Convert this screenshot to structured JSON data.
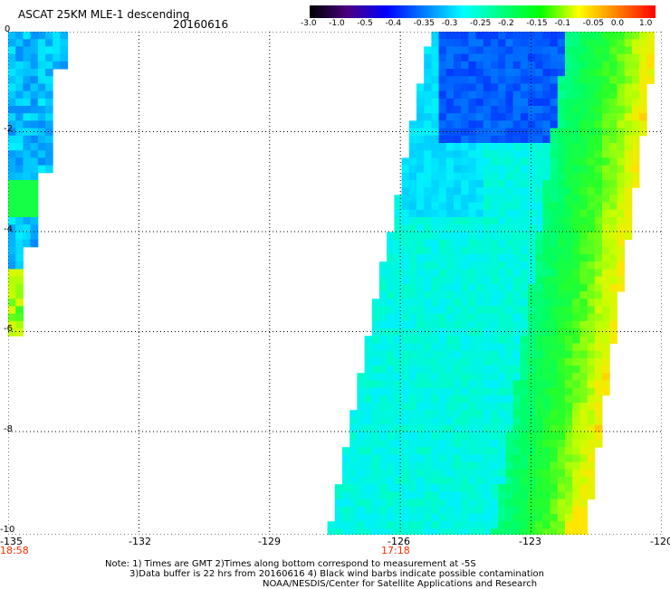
{
  "header": {
    "title": "ASCAT 25KM MLE-1 descending",
    "date": "20160616"
  },
  "colorbar": {
    "labels": [
      "-3.0",
      "-1.0",
      "-0.5",
      "-0.4",
      "-0.35",
      "-0.3",
      "-0.25",
      "-0.2",
      "-0.15",
      "-0.1",
      "-0.05",
      "0.0",
      "1.0"
    ],
    "colors": [
      "#000000",
      "#4b0082",
      "#0000ff",
      "#0080ff",
      "#00ffff",
      "#00ff80",
      "#00ff00",
      "#ffff00",
      "#ff8000",
      "#ff0000"
    ]
  },
  "map": {
    "lon_range": [
      -135,
      -120
    ],
    "lat_range": [
      -10,
      0
    ],
    "x_ticks": [
      "-135",
      "-132",
      "-129",
      "-126",
      "-123",
      "-120"
    ],
    "y_ticks": [
      "0",
      "-2",
      "-4",
      "-6",
      "-8",
      "-10"
    ],
    "times": [
      "18:58",
      "17:18"
    ],
    "grid": "dotted"
  },
  "footer": {
    "line1": "Note: 1) Times are GMT 2)Times along bottom correspond to measurement at -5S",
    "line2": "3)Data buffer is 22 hrs from 20160616 4) Black wind barbs indicate possible contamination",
    "line3": "NOAA/NESDIS/Center for Satellite Applications and Research"
  }
}
